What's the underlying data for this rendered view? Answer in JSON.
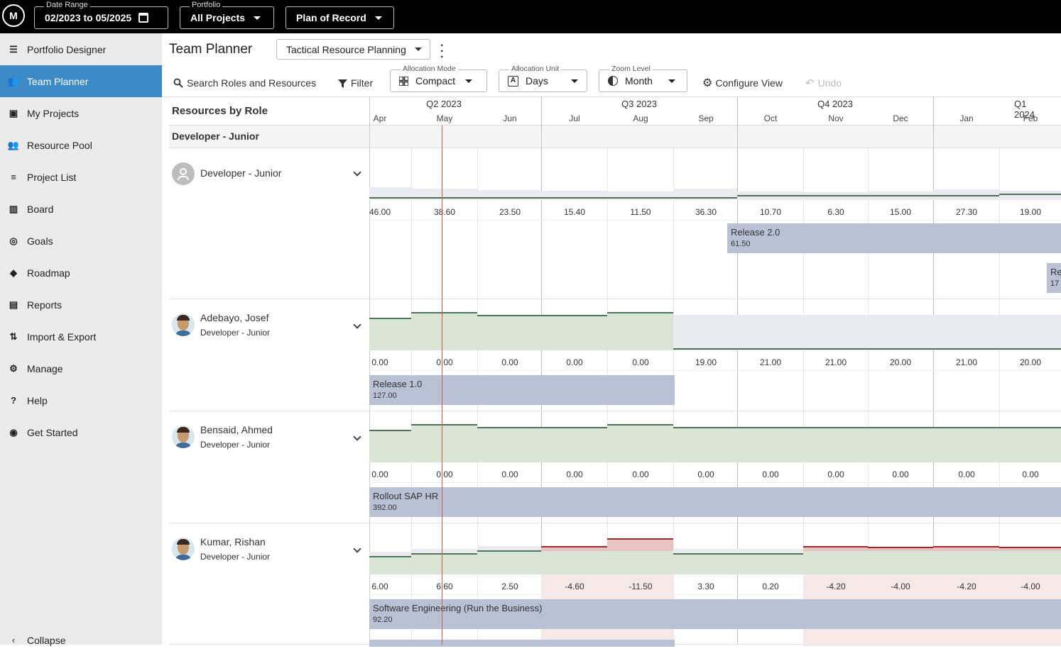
{
  "topbar": {
    "logo": "M",
    "date_range": {
      "label": "Date Range",
      "value": "02/2023 to 05/2025"
    },
    "portfolio": {
      "label": "Portfolio",
      "value": "All Projects"
    },
    "plan": {
      "value": "Plan of Record"
    }
  },
  "sidebar": {
    "items": [
      {
        "label": "Portfolio Designer",
        "icon": "portfolio-designer-icon"
      },
      {
        "label": "Team Planner",
        "icon": "team-planner-icon",
        "active": true
      },
      {
        "label": "My Projects",
        "icon": "my-projects-icon"
      },
      {
        "label": "Resource Pool",
        "icon": "resource-pool-icon"
      },
      {
        "label": "Project List",
        "icon": "list-icon"
      },
      {
        "label": "Board",
        "icon": "board-icon"
      },
      {
        "label": "Goals",
        "icon": "goals-icon"
      },
      {
        "label": "Roadmap",
        "icon": "roadmap-icon"
      },
      {
        "label": "Reports",
        "icon": "reports-icon"
      },
      {
        "label": "Import & Export",
        "icon": "import-export-icon"
      },
      {
        "label": "Manage",
        "icon": "gear-icon"
      },
      {
        "label": "Help",
        "icon": "help-icon"
      },
      {
        "label": "Get Started",
        "icon": "compass-icon"
      }
    ],
    "collapse": "Collapse"
  },
  "header": {
    "title": "Team Planner",
    "view": "Tactical Resource Planning"
  },
  "toolbar": {
    "search": "Search Roles and Resources",
    "filter": "Filter",
    "allocation_mode": {
      "label": "Allocation Mode",
      "value": "Compact"
    },
    "allocation_unit": {
      "label": "Allocation Unit",
      "value": "Days"
    },
    "zoom_level": {
      "label": "Zoom Level",
      "value": "Month"
    },
    "configure": "Configure View",
    "undo": "Undo"
  },
  "grid": {
    "left_header": "Resources by Role",
    "group": "Developer - Junior",
    "quarters": [
      "Q2 2023",
      "Q3 2023",
      "Q4 2023",
      "Q1 2024"
    ],
    "months": [
      "Apr",
      "May",
      "Jun",
      "Jul",
      "Aug",
      "Sep",
      "Oct",
      "Nov",
      "Dec",
      "Jan",
      "Feb"
    ],
    "rows": [
      {
        "name": "Developer - Junior",
        "subtitle": "",
        "values": [
          "46.00",
          "38.60",
          "23.50",
          "15.40",
          "11.50",
          "36.30",
          "10.70",
          "6.30",
          "15.00",
          "27.30",
          "19.00"
        ],
        "bars": [
          {
            "label": "Release 2.0",
            "value": "61.50"
          },
          {
            "label": "Re",
            "value": "17"
          }
        ]
      },
      {
        "name": "Adebayo, Josef",
        "subtitle": "Developer - Junior",
        "values": [
          "0.00",
          "0.00",
          "0.00",
          "0.00",
          "0.00",
          "19.00",
          "21.00",
          "21.00",
          "20.00",
          "21.00",
          "20.00"
        ],
        "bars": [
          {
            "label": "Release 1.0",
            "value": "127.00"
          }
        ]
      },
      {
        "name": "Bensaid, Ahmed",
        "subtitle": "Developer - Junior",
        "values": [
          "0.00",
          "0.00",
          "0.00",
          "0.00",
          "0.00",
          "0.00",
          "0.00",
          "0.00",
          "0.00",
          "0.00",
          "0.00"
        ],
        "bars": [
          {
            "label": "Rollout SAP HR",
            "value": "392.00"
          }
        ]
      },
      {
        "name": "Kumar, Rishan",
        "subtitle": "Developer - Junior",
        "values": [
          "6.00",
          "6.60",
          "2.50",
          "-4.60",
          "-11.50",
          "3.30",
          "0.20",
          "-4.20",
          "-4.00",
          "-4.20",
          "-4.00"
        ],
        "bars": [
          {
            "label": "Software Engineering (Run the Business)",
            "value": "92.20"
          }
        ]
      }
    ]
  },
  "colors": {
    "accent": "#3d8ac8",
    "available_fill": "#dbe5d6",
    "available_line": "#4e7358",
    "over_fill": "#e7c3c3",
    "over_line": "#9e2a2a",
    "capacity_fill": "#e9ebf0",
    "bar_fill": "#b8c2d4",
    "today_line": "#d9534f"
  }
}
